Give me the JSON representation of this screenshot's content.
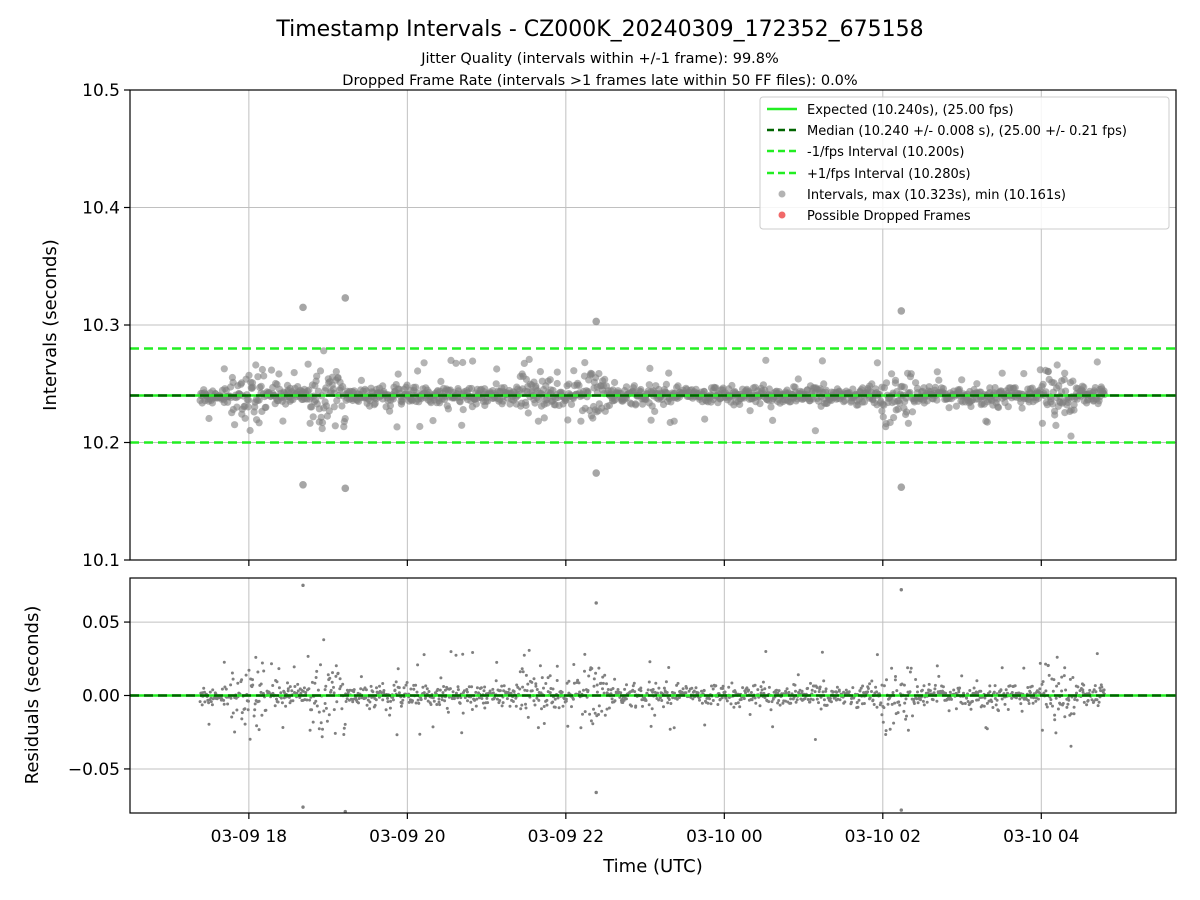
{
  "title": "Timestamp Intervals - CZ000K_20240309_172352_675158",
  "subtitle_1": "Jitter Quality (intervals within +/-1 frame): 99.8%",
  "subtitle_2": "Dropped Frame Rate (intervals >1 frames late within 50 FF files): 0.0%",
  "colors": {
    "expected": "#22ee22",
    "median": "#006400",
    "interval_bounds": "#22ee22",
    "points": "#808080",
    "dropped": "#ee4444",
    "grid": "#c0c0c0"
  },
  "chart_data": [
    {
      "type": "scatter",
      "ylabel": "Intervals (seconds)",
      "xlabel": "",
      "ylim": [
        10.1,
        10.5
      ],
      "yticks": [
        10.1,
        10.2,
        10.3,
        10.4,
        10.5
      ],
      "ytick_labels": [
        "10.1",
        "10.2",
        "10.3",
        "10.4",
        "10.5"
      ],
      "xlim_hours": [
        16.5,
        5.7
      ],
      "grid": true,
      "legend_placement": "upper right",
      "reference_lines": [
        {
          "name": "Expected (10.240s), (25.00 fps)",
          "y": 10.24,
          "style": "solid",
          "color": "#22ee22"
        },
        {
          "name": "Median (10.240 +/- 0.008 s), (25.00 +/- 0.21 fps)",
          "y": 10.24,
          "style": "dashed",
          "color": "#006400"
        },
        {
          "name": "-1/fps Interval (10.200s)",
          "y": 10.2,
          "style": "dashed",
          "color": "#22ee22"
        },
        {
          "name": "+1/fps Interval (10.280s)",
          "y": 10.28,
          "style": "dashed",
          "color": "#22ee22"
        }
      ],
      "series": [
        {
          "name": "Intervals, max (10.323s), min (10.161s)",
          "color": "#808080",
          "x_range": [
            "03-09 17:23",
            "03-10 04:48"
          ],
          "center": 10.24,
          "max": 10.323,
          "min": 10.161
        },
        {
          "name": "Possible Dropped Frames",
          "color": "#ee4444",
          "values": []
        }
      ],
      "outliers": [
        {
          "x": "03-09 18:41",
          "y": 10.315
        },
        {
          "x": "03-09 18:41",
          "y": 10.164
        },
        {
          "x": "03-09 19:13",
          "y": 10.323
        },
        {
          "x": "03-09 19:13",
          "y": 10.161
        },
        {
          "x": "03-09 22:23",
          "y": 10.303
        },
        {
          "x": "03-09 22:23",
          "y": 10.174
        },
        {
          "x": "03-10 02:14",
          "y": 10.312
        },
        {
          "x": "03-10 02:14",
          "y": 10.162
        }
      ]
    },
    {
      "type": "scatter",
      "ylabel": "Residuals (seconds)",
      "xlabel": "Time (UTC)",
      "ylim": [
        -0.08,
        0.08
      ],
      "yticks": [
        -0.05,
        0.0,
        0.05
      ],
      "ytick_labels": [
        "−0.05",
        "0.00",
        "0.05"
      ],
      "xticks": [
        "03-09 18",
        "03-09 20",
        "03-09 22",
        "03-10 00",
        "03-10 02",
        "03-10 04"
      ],
      "grid": true,
      "reference_lines": [
        {
          "y": 0.0,
          "style": "solid",
          "color": "#22ee22"
        },
        {
          "y": 0.0,
          "style": "dashed",
          "color": "#006400"
        }
      ],
      "series": [
        {
          "color": "#808080",
          "x_range": [
            "03-09 17:23",
            "03-10 04:48"
          ],
          "center": 0.0,
          "max": 0.083,
          "min": -0.079
        }
      ]
    }
  ]
}
